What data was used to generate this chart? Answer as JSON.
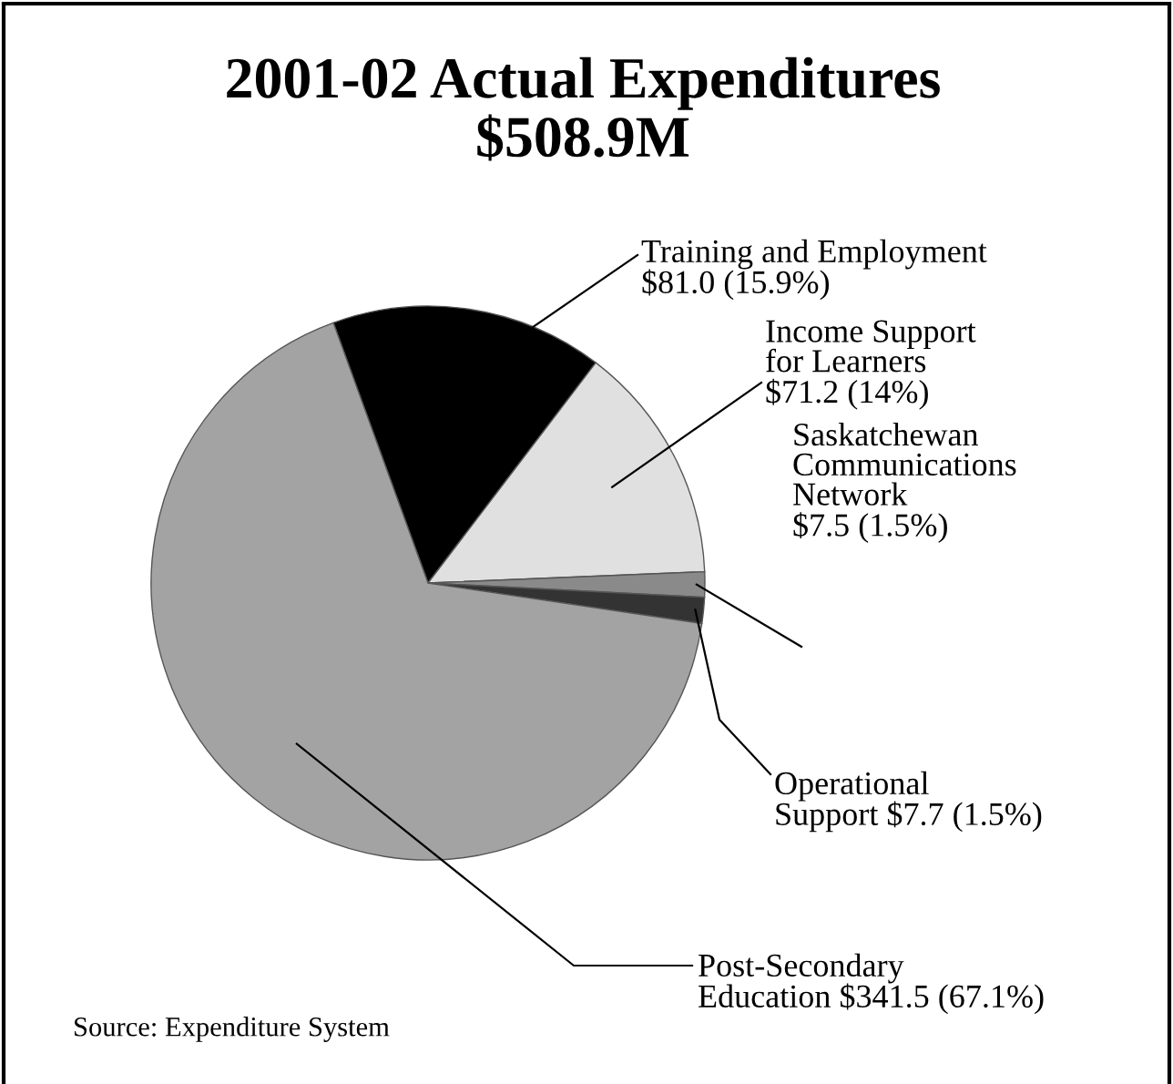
{
  "chart_data": {
    "type": "pie",
    "title": "2001-02 Actual Expenditures\n$508.9M",
    "categories": [
      "Training and Employment",
      "Income Support\nfor Learners",
      "Saskatchewan\nCommunications\nNetwork",
      "Operational\nSupport",
      "Post-Secondary\nEducation"
    ],
    "values": [
      81.0,
      71.2,
      7.5,
      7.7,
      341.5
    ],
    "colors": [
      "#000000",
      "#e0e0e0",
      "#8a8a8a",
      "#333333",
      "#a3a3a3"
    ],
    "value_labels": [
      "$81.0 (15.9%)",
      "$71.2 (14%)",
      "$7.5 (1.5%)",
      "$7.7 (1.5%)",
      "$341.5 (67.1%)"
    ],
    "annotations": [
      "Source: Expenditure System"
    ]
  }
}
